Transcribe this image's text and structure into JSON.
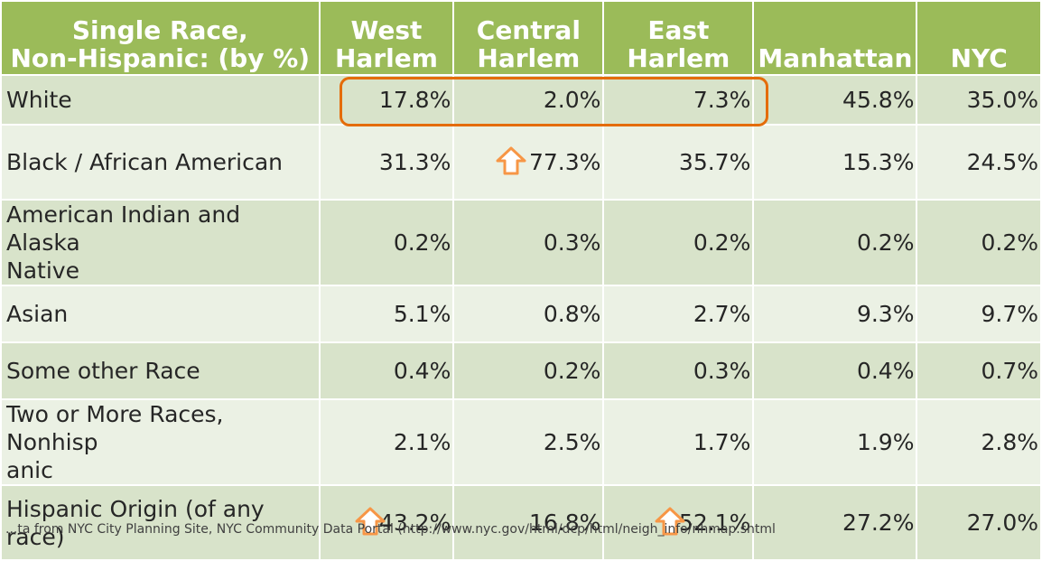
{
  "chart_data": {
    "type": "table",
    "header": [
      "Single Race,\nNon-Hispanic: (by %)",
      "West\nHarlem",
      "Central\nHarlem",
      "East\nHarlem",
      "Manhattan",
      "NYC"
    ],
    "rows": [
      {
        "label": "White",
        "values": [
          "17.8%",
          "2.0%",
          "7.3%",
          "45.8%",
          "35.0%"
        ],
        "arrows": []
      },
      {
        "label": "Black / African American",
        "values": [
          "31.3%",
          "77.3%",
          "35.7%",
          "15.3%",
          "24.5%"
        ],
        "arrows": [
          1
        ]
      },
      {
        "label": "American Indian and Alaska\nNative",
        "values": [
          "0.2%",
          "0.3%",
          "0.2%",
          "0.2%",
          "0.2%"
        ],
        "arrows": []
      },
      {
        "label": "Asian",
        "values": [
          "5.1%",
          "0.8%",
          "2.7%",
          "9.3%",
          "9.7%"
        ],
        "arrows": []
      },
      {
        "label": "Some other Race",
        "values": [
          "0.4%",
          "0.2%",
          "0.3%",
          "0.4%",
          "0.7%"
        ],
        "arrows": []
      },
      {
        "label": "Two or More Races, Nonhisp\nanic",
        "values": [
          "2.1%",
          "2.5%",
          "1.7%",
          "1.9%",
          "2.8%"
        ],
        "arrows": []
      },
      {
        "label": "Hispanic Origin (of any race)",
        "values": [
          "43.2%",
          "16.8%",
          "52.1%",
          "27.2%",
          "27.0%"
        ],
        "arrows": [
          0,
          2
        ]
      }
    ],
    "highlight": {
      "row": 0,
      "columns": [
        0,
        1,
        2
      ]
    }
  },
  "colors": {
    "header": "#9bbb59",
    "row_dark": "#d8e3ca",
    "row_light": "#ebf1e4",
    "accent": "#e46c0a",
    "arrow": "#f79646"
  },
  "icons": {
    "increase": "up-arrow-icon"
  },
  "footer": {
    "text": "...ta from NYC City Planning Site, NYC Community Data Portal (http://www.nyc.gov/html/dcp/html/neigh_info/nhmap.shtml"
  }
}
